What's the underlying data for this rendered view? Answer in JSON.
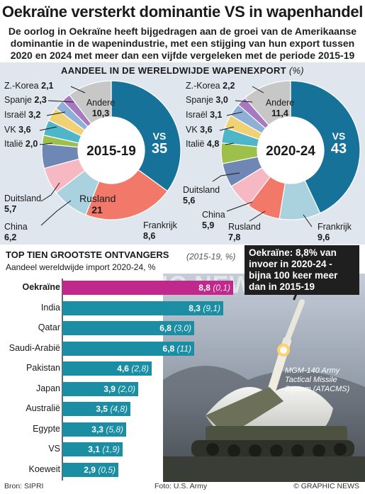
{
  "title": "Oekraïne versterkt dominantie VS in wapenhandel",
  "subtitle": "De oorlog in Oekraïne heeft bijgedragen aan de groei van de Amerikaanse dominantie in de wapenindustrie, met een stijging van hun export tussen 2020 en 2024 met meer dan een vijfde vergeleken met de periode 2015-19",
  "export_section": {
    "title": "AANDEEL IN DE WERELDWIJDE WAPENEXPORT",
    "unit": "(%)"
  },
  "recipients": {
    "title": "TOP TIEN GROOTSTE ONTVANGERS",
    "subtitle": "Aandeel wereldwijde import 2020-24, %",
    "comparison_note": "(2015-19, %)",
    "callout": "Oekraïne: 8,8% van invoer in 2020-24 - bijna 100 keer meer dan in 2015-19"
  },
  "photo": {
    "caption": "MGM-140 Army Tactical Missile System (ATACMS)",
    "watermark": "GRAPHIC NEWS"
  },
  "footer": {
    "source": "Bron: SIPRI",
    "photo_credit": "Foto: U.S. Army",
    "copyright": "© GRAPHIC NEWS"
  },
  "colors": {
    "accent": "#1c8ea4",
    "highlight": "#c0288c",
    "band": "#dfe6ee",
    "vs": "#17729a",
    "rusland": "#f2786a",
    "frankrijk": "#a9d1de",
    "china": "#f6b9c4",
    "duitsland": "#6f87b5",
    "italie": "#9cc04a",
    "vk": "#4fb5c9",
    "israel": "#f0d275",
    "spanje": "#8fb0d6",
    "zkorea": "#a679c1",
    "andere": "#c7c7c7"
  },
  "chart_data": [
    {
      "type": "pie",
      "title": "2015-19",
      "categories": [
        "VS",
        "Rusland",
        "Frankrijk",
        "China",
        "Duitsland",
        "Italië",
        "VK",
        "Israël",
        "Spanje",
        "Z.-Korea",
        "Andere"
      ],
      "values": [
        35,
        21,
        8.6,
        6.2,
        5.7,
        2.0,
        3.6,
        3.2,
        2.3,
        2.1,
        10.3
      ],
      "labels": [
        "35",
        "21",
        "8,6",
        "6,2",
        "5,7",
        "2,0",
        "3,6",
        "3,2",
        "2,3",
        "2,1",
        "10,3"
      ]
    },
    {
      "type": "pie",
      "title": "2020-24",
      "categories": [
        "VS",
        "Frankrijk",
        "Rusland",
        "China",
        "Duitsland",
        "Italië",
        "VK",
        "Israël",
        "Spanje",
        "Z.-Korea",
        "Andere"
      ],
      "values": [
        43,
        9.6,
        7.8,
        5.9,
        5.6,
        4.8,
        3.6,
        3.1,
        3.0,
        2.2,
        11.4
      ],
      "labels": [
        "43",
        "9,6",
        "7,8",
        "5,9",
        "5,6",
        "4,8",
        "3,6",
        "3,1",
        "3,0",
        "2,2",
        "11,4"
      ]
    },
    {
      "type": "bar",
      "categories": [
        "Oekraïne",
        "India",
        "Qatar",
        "Saudi-Arabië",
        "Pakistan",
        "Japan",
        "Australië",
        "Egypte",
        "VS",
        "Koeweit"
      ],
      "values": [
        8.8,
        8.3,
        6.8,
        6.8,
        4.6,
        3.9,
        3.5,
        3.3,
        3.1,
        2.9
      ],
      "value_labels": [
        "8,8",
        "8,3",
        "6,8",
        "6,8",
        "4,6",
        "3,9",
        "3,5",
        "3,3",
        "3,1",
        "2,9"
      ],
      "previous_labels": [
        "(0,1)",
        "(9,1)",
        "(3,0)",
        "(11)",
        "(2,8)",
        "(2,0)",
        "(4,8)",
        "(5,8)",
        "(1,9)",
        "(0,5)"
      ],
      "previous_values": [
        0.1,
        9.1,
        3.0,
        11,
        2.8,
        2.0,
        4.8,
        5.8,
        1.9,
        0.5
      ]
    }
  ]
}
